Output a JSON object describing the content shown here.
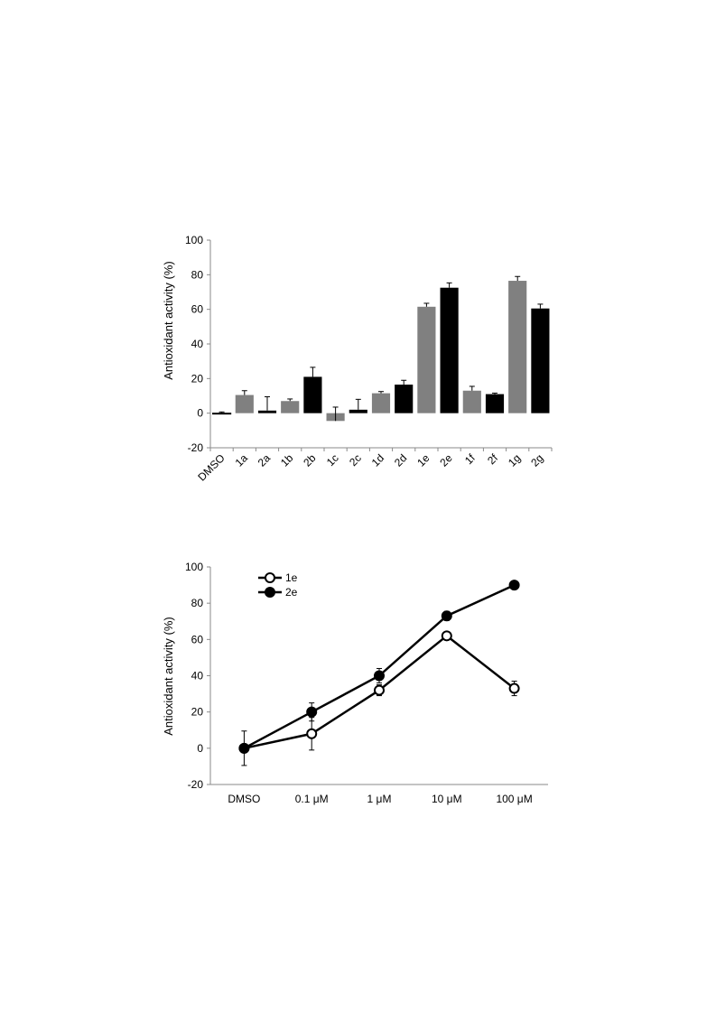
{
  "chart_data": [
    {
      "type": "bar",
      "title": "",
      "xlabel": "",
      "ylabel": "Antioxidant  activity (%)",
      "ylim": [
        -20,
        100
      ],
      "yticks": [
        -20,
        0,
        20,
        40,
        60,
        80,
        100
      ],
      "categories": [
        "DMSO",
        "1a",
        "2a",
        "1b",
        "2b",
        "1c",
        "2c",
        "1d",
        "2d",
        "1e",
        "2e",
        "1f",
        "2f",
        "1g",
        "2g"
      ],
      "values": [
        0,
        10.5,
        1.5,
        7,
        21,
        -4.5,
        2,
        11.5,
        16.5,
        61.5,
        72.5,
        13,
        11,
        76.5,
        60.5
      ],
      "errors": [
        0.7,
        2.5,
        8,
        1.2,
        5.5,
        8,
        6,
        1,
        2.5,
        2,
        2.8,
        2.5,
        0.6,
        2.5,
        2.5
      ],
      "colors": [
        "#ffffff",
        "#808080",
        "#000000",
        "#808080",
        "#000000",
        "#808080",
        "#000000",
        "#808080",
        "#000000",
        "#808080",
        "#000000",
        "#808080",
        "#000000",
        "#808080",
        "#000000"
      ],
      "grid": false
    },
    {
      "type": "line",
      "title": "",
      "xlabel": "",
      "ylabel": "Antioxidant  activity (%)",
      "ylim": [
        -20,
        100
      ],
      "yticks": [
        -20,
        0,
        20,
        40,
        60,
        80,
        100
      ],
      "categories": [
        "DMSO",
        "0.1 μM",
        "1 μM",
        "10 μM",
        "100 μM"
      ],
      "series": [
        {
          "name": "1e",
          "marker": "open-circle",
          "color": "#000000",
          "values": [
            0,
            8,
            32,
            62,
            33
          ],
          "errors": [
            9.5,
            9,
            3,
            1.5,
            4
          ]
        },
        {
          "name": "2e",
          "marker": "filled-circle",
          "color": "#000000",
          "values": [
            0,
            20,
            40,
            73,
            90
          ],
          "errors": [
            0,
            5,
            4,
            2.5,
            0
          ]
        }
      ],
      "legend": "top-left",
      "grid": false
    }
  ]
}
